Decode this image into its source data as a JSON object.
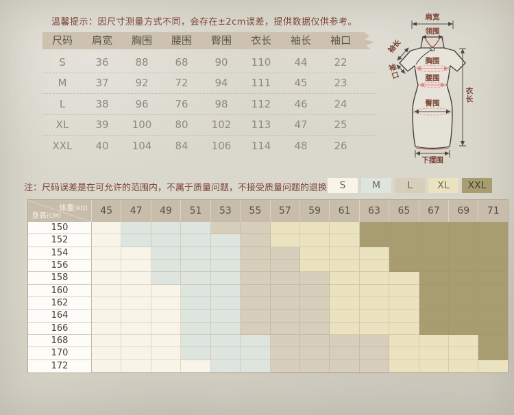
{
  "tip": "温馨提示：因尺寸测量方式不同，会存在±2cm误差，提供数据仅供参考。",
  "size_table": {
    "headers": [
      "尺码",
      "肩宽",
      "胸围",
      "腰围",
      "臀围",
      "衣长",
      "袖长",
      "袖口"
    ],
    "rows": [
      [
        "S",
        "36",
        "88",
        "68",
        "90",
        "110",
        "44",
        "22"
      ],
      [
        "M",
        "37",
        "92",
        "72",
        "94",
        "111",
        "45",
        "23"
      ],
      [
        "L",
        "38",
        "96",
        "76",
        "98",
        "112",
        "46",
        "24"
      ],
      [
        "XL",
        "39",
        "100",
        "80",
        "102",
        "113",
        "47",
        "25"
      ],
      [
        "XXL",
        "40",
        "104",
        "84",
        "106",
        "114",
        "48",
        "26"
      ]
    ]
  },
  "diagram": {
    "labels": {
      "shoulder": "肩宽",
      "collar": "领围",
      "sleeve_length": "袖长",
      "cuff": "袖口",
      "bust": "胸围",
      "waist": "腰围",
      "hip": "臀围",
      "length": "衣长",
      "hem": "下摆围"
    }
  },
  "note": "注：尺码误差是在可允许的范围内，不属于质量问题，不接受质量问题的退换货",
  "legend": {
    "items": [
      {
        "label": "S",
        "color": "#f8f4e7",
        "dark": false
      },
      {
        "label": "M",
        "color": "#dee5de",
        "dark": false
      },
      {
        "label": "L",
        "color": "#d7cebb",
        "dark": false
      },
      {
        "label": "XL",
        "color": "#ebe3c0",
        "dark": false
      },
      {
        "label": "XXL",
        "color": "#a79d71",
        "dark": true
      }
    ]
  },
  "colors": {
    "S": "#f8f4e7",
    "M": "#dee5de",
    "L": "#d7cebb",
    "XL": "#ebe3c0",
    "XXL": "#a79d71"
  },
  "matrix": {
    "weight_label": "体重",
    "weight_unit": "(KG)",
    "height_label": "身高",
    "height_unit": "(CM)",
    "weights": [
      "45",
      "47",
      "49",
      "51",
      "53",
      "55",
      "57",
      "59",
      "61",
      "63",
      "65",
      "67",
      "69",
      "71"
    ],
    "heights": [
      "150",
      "152",
      "154",
      "156",
      "158",
      "160",
      "162",
      "164",
      "166",
      "168",
      "170",
      "172"
    ],
    "cells": [
      [
        "S",
        "M",
        "M",
        "M",
        "L",
        "L",
        "XL",
        "XL",
        "XL",
        "XXL",
        "XXL",
        "XXL",
        "XXL",
        "XXL"
      ],
      [
        "S",
        "M",
        "M",
        "M",
        "M",
        "L",
        "XL",
        "XL",
        "XL",
        "XXL",
        "XXL",
        "XXL",
        "XXL",
        "XXL"
      ],
      [
        "S",
        "S",
        "M",
        "M",
        "M",
        "L",
        "L",
        "XL",
        "XL",
        "XL",
        "XXL",
        "XXL",
        "XXL",
        "XXL"
      ],
      [
        "S",
        "S",
        "M",
        "M",
        "M",
        "L",
        "L",
        "XL",
        "XL",
        "XL",
        "XXL",
        "XXL",
        "XXL",
        "XXL"
      ],
      [
        "S",
        "S",
        "M",
        "M",
        "M",
        "L",
        "L",
        "L",
        "XL",
        "XL",
        "XL",
        "XXL",
        "XXL",
        "XXL"
      ],
      [
        "S",
        "S",
        "S",
        "M",
        "M",
        "L",
        "L",
        "L",
        "XL",
        "XL",
        "XL",
        "XXL",
        "XXL",
        "XXL"
      ],
      [
        "S",
        "S",
        "S",
        "M",
        "M",
        "L",
        "L",
        "L",
        "XL",
        "XL",
        "XL",
        "XXL",
        "XXL",
        "XXL"
      ],
      [
        "S",
        "S",
        "S",
        "M",
        "M",
        "L",
        "L",
        "L",
        "XL",
        "XL",
        "XL",
        "XXL",
        "XXL",
        "XXL"
      ],
      [
        "S",
        "S",
        "S",
        "M",
        "M",
        "L",
        "L",
        "L",
        "XL",
        "XL",
        "XL",
        "XXL",
        "XXL",
        "XXL"
      ],
      [
        "S",
        "S",
        "S",
        "M",
        "M",
        "M",
        "L",
        "L",
        "L",
        "L",
        "XL",
        "XL",
        "XL",
        "XXL"
      ],
      [
        "S",
        "S",
        "S",
        "M",
        "M",
        "M",
        "L",
        "L",
        "L",
        "L",
        "XL",
        "XL",
        "XL",
        "XXL"
      ],
      [
        "S",
        "S",
        "S",
        "S",
        "M",
        "M",
        "L",
        "L",
        "L",
        "L",
        "XL",
        "XL",
        "XL",
        "XL"
      ]
    ]
  }
}
